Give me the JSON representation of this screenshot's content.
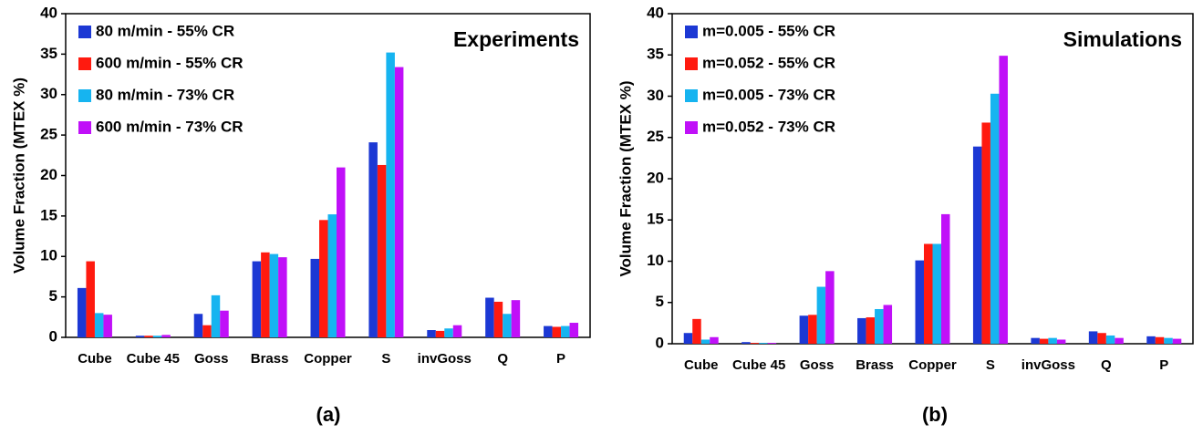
{
  "chart_data": [
    {
      "type": "bar",
      "title": "Experiments",
      "caption": "(a)",
      "ylabel": "Volume Fraction (MTEX %)",
      "categories": [
        "Cube",
        "Cube 45",
        "Goss",
        "Brass",
        "Copper",
        "S",
        "invGoss",
        "Q",
        "P"
      ],
      "series": [
        {
          "name": "80 m/min - 55% CR",
          "color": "#1c38d4",
          "values": [
            6.1,
            0.2,
            2.9,
            9.4,
            9.7,
            24.1,
            0.9,
            4.9,
            1.4
          ]
        },
        {
          "name": "600 m/min - 55% CR",
          "color": "#ff1a0f",
          "values": [
            9.4,
            0.2,
            1.5,
            10.5,
            14.5,
            21.3,
            0.8,
            4.4,
            1.3
          ]
        },
        {
          "name": "80 m/min - 73% CR",
          "color": "#16b4f0",
          "values": [
            3.0,
            0.2,
            5.2,
            10.3,
            15.2,
            35.2,
            1.1,
            2.9,
            1.4
          ]
        },
        {
          "name": "600 m/min - 73% CR",
          "color": "#c010f8",
          "values": [
            2.8,
            0.3,
            3.3,
            9.9,
            21.0,
            33.4,
            1.5,
            4.6,
            1.8
          ]
        }
      ],
      "ylim": [
        0,
        40
      ],
      "yticks": [
        0,
        5,
        10,
        15,
        20,
        25,
        30,
        35,
        40
      ]
    },
    {
      "type": "bar",
      "title": "Simulations",
      "caption": "(b)",
      "ylabel": "Volume Fraction (MTEX %)",
      "categories": [
        "Cube",
        "Cube 45",
        "Goss",
        "Brass",
        "Copper",
        "S",
        "invGoss",
        "Q",
        "P"
      ],
      "series": [
        {
          "name": "m=0.005 - 55% CR",
          "color": "#1c38d4",
          "values": [
            1.3,
            0.2,
            3.4,
            3.1,
            10.1,
            23.9,
            0.7,
            1.5,
            0.9
          ]
        },
        {
          "name": "m=0.052 - 55% CR",
          "color": "#ff1a0f",
          "values": [
            3.0,
            0.1,
            3.5,
            3.2,
            12.1,
            26.8,
            0.6,
            1.3,
            0.8
          ]
        },
        {
          "name": "m=0.005 - 73% CR",
          "color": "#16b4f0",
          "values": [
            0.5,
            0.1,
            6.9,
            4.2,
            12.1,
            30.3,
            0.7,
            1.0,
            0.7
          ]
        },
        {
          "name": "m=0.052 - 73% CR",
          "color": "#c010f8",
          "values": [
            0.8,
            0.1,
            8.8,
            4.7,
            15.7,
            34.9,
            0.5,
            0.7,
            0.6
          ]
        }
      ],
      "ylim": [
        0,
        40
      ],
      "yticks": [
        0,
        5,
        10,
        15,
        20,
        25,
        30,
        35,
        40
      ]
    }
  ]
}
